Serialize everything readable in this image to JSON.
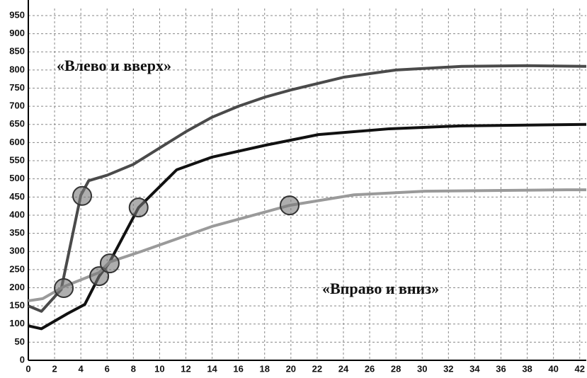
{
  "chart_data": {
    "type": "line",
    "xlim": [
      0,
      42.5
    ],
    "xticks": [
      0,
      2,
      4,
      6,
      8,
      10,
      12,
      14,
      16,
      18,
      20,
      22,
      24,
      26,
      28,
      30,
      32,
      34,
      36,
      38,
      40,
      42
    ],
    "ylim": [
      0,
      950
    ],
    "yticks": [
      0,
      50,
      100,
      150,
      200,
      250,
      300,
      350,
      400,
      450,
      500,
      550,
      600,
      650,
      700,
      750,
      800,
      850,
      900,
      950
    ],
    "grid": true,
    "annotations": [
      "«Влево и вверх»",
      "«Вправо и вниз»"
    ],
    "series": [
      {
        "color": "#4a4a4a",
        "x": [
          0,
          1,
          2.5,
          4,
          4.6,
          6,
          8,
          10,
          12,
          14,
          16,
          18,
          20,
          24,
          28,
          33,
          38,
          42.5
        ],
        "values": [
          150,
          135,
          195,
          455,
          495,
          510,
          540,
          585,
          630,
          670,
          700,
          725,
          745,
          780,
          800,
          810,
          812,
          810
        ]
      },
      {
        "color": "#111111",
        "x": [
          0,
          1,
          3,
          4.3,
          5.4,
          6.2,
          8.4,
          11.3,
          14,
          18.1,
          22.1,
          27.5,
          32.9,
          42.5
        ],
        "values": [
          95,
          87,
          129,
          154,
          232,
          271,
          421,
          525,
          560,
          593,
          622,
          638,
          646,
          650
        ]
      },
      {
        "color": "#9a9a9a",
        "x": [
          0,
          1.1,
          2.7,
          5.4,
          6.2,
          8.6,
          14,
          19.9,
          24.8,
          30.2,
          41,
          42.5
        ],
        "values": [
          164,
          170,
          203,
          242,
          271,
          300,
          369,
          427,
          456,
          466,
          470,
          470
        ]
      }
    ],
    "markers": {
      "x": [
        2.7,
        4.1,
        5.4,
        6.2,
        8.4,
        19.9
      ],
      "values": [
        199,
        453,
        232,
        267,
        421,
        427
      ]
    }
  }
}
